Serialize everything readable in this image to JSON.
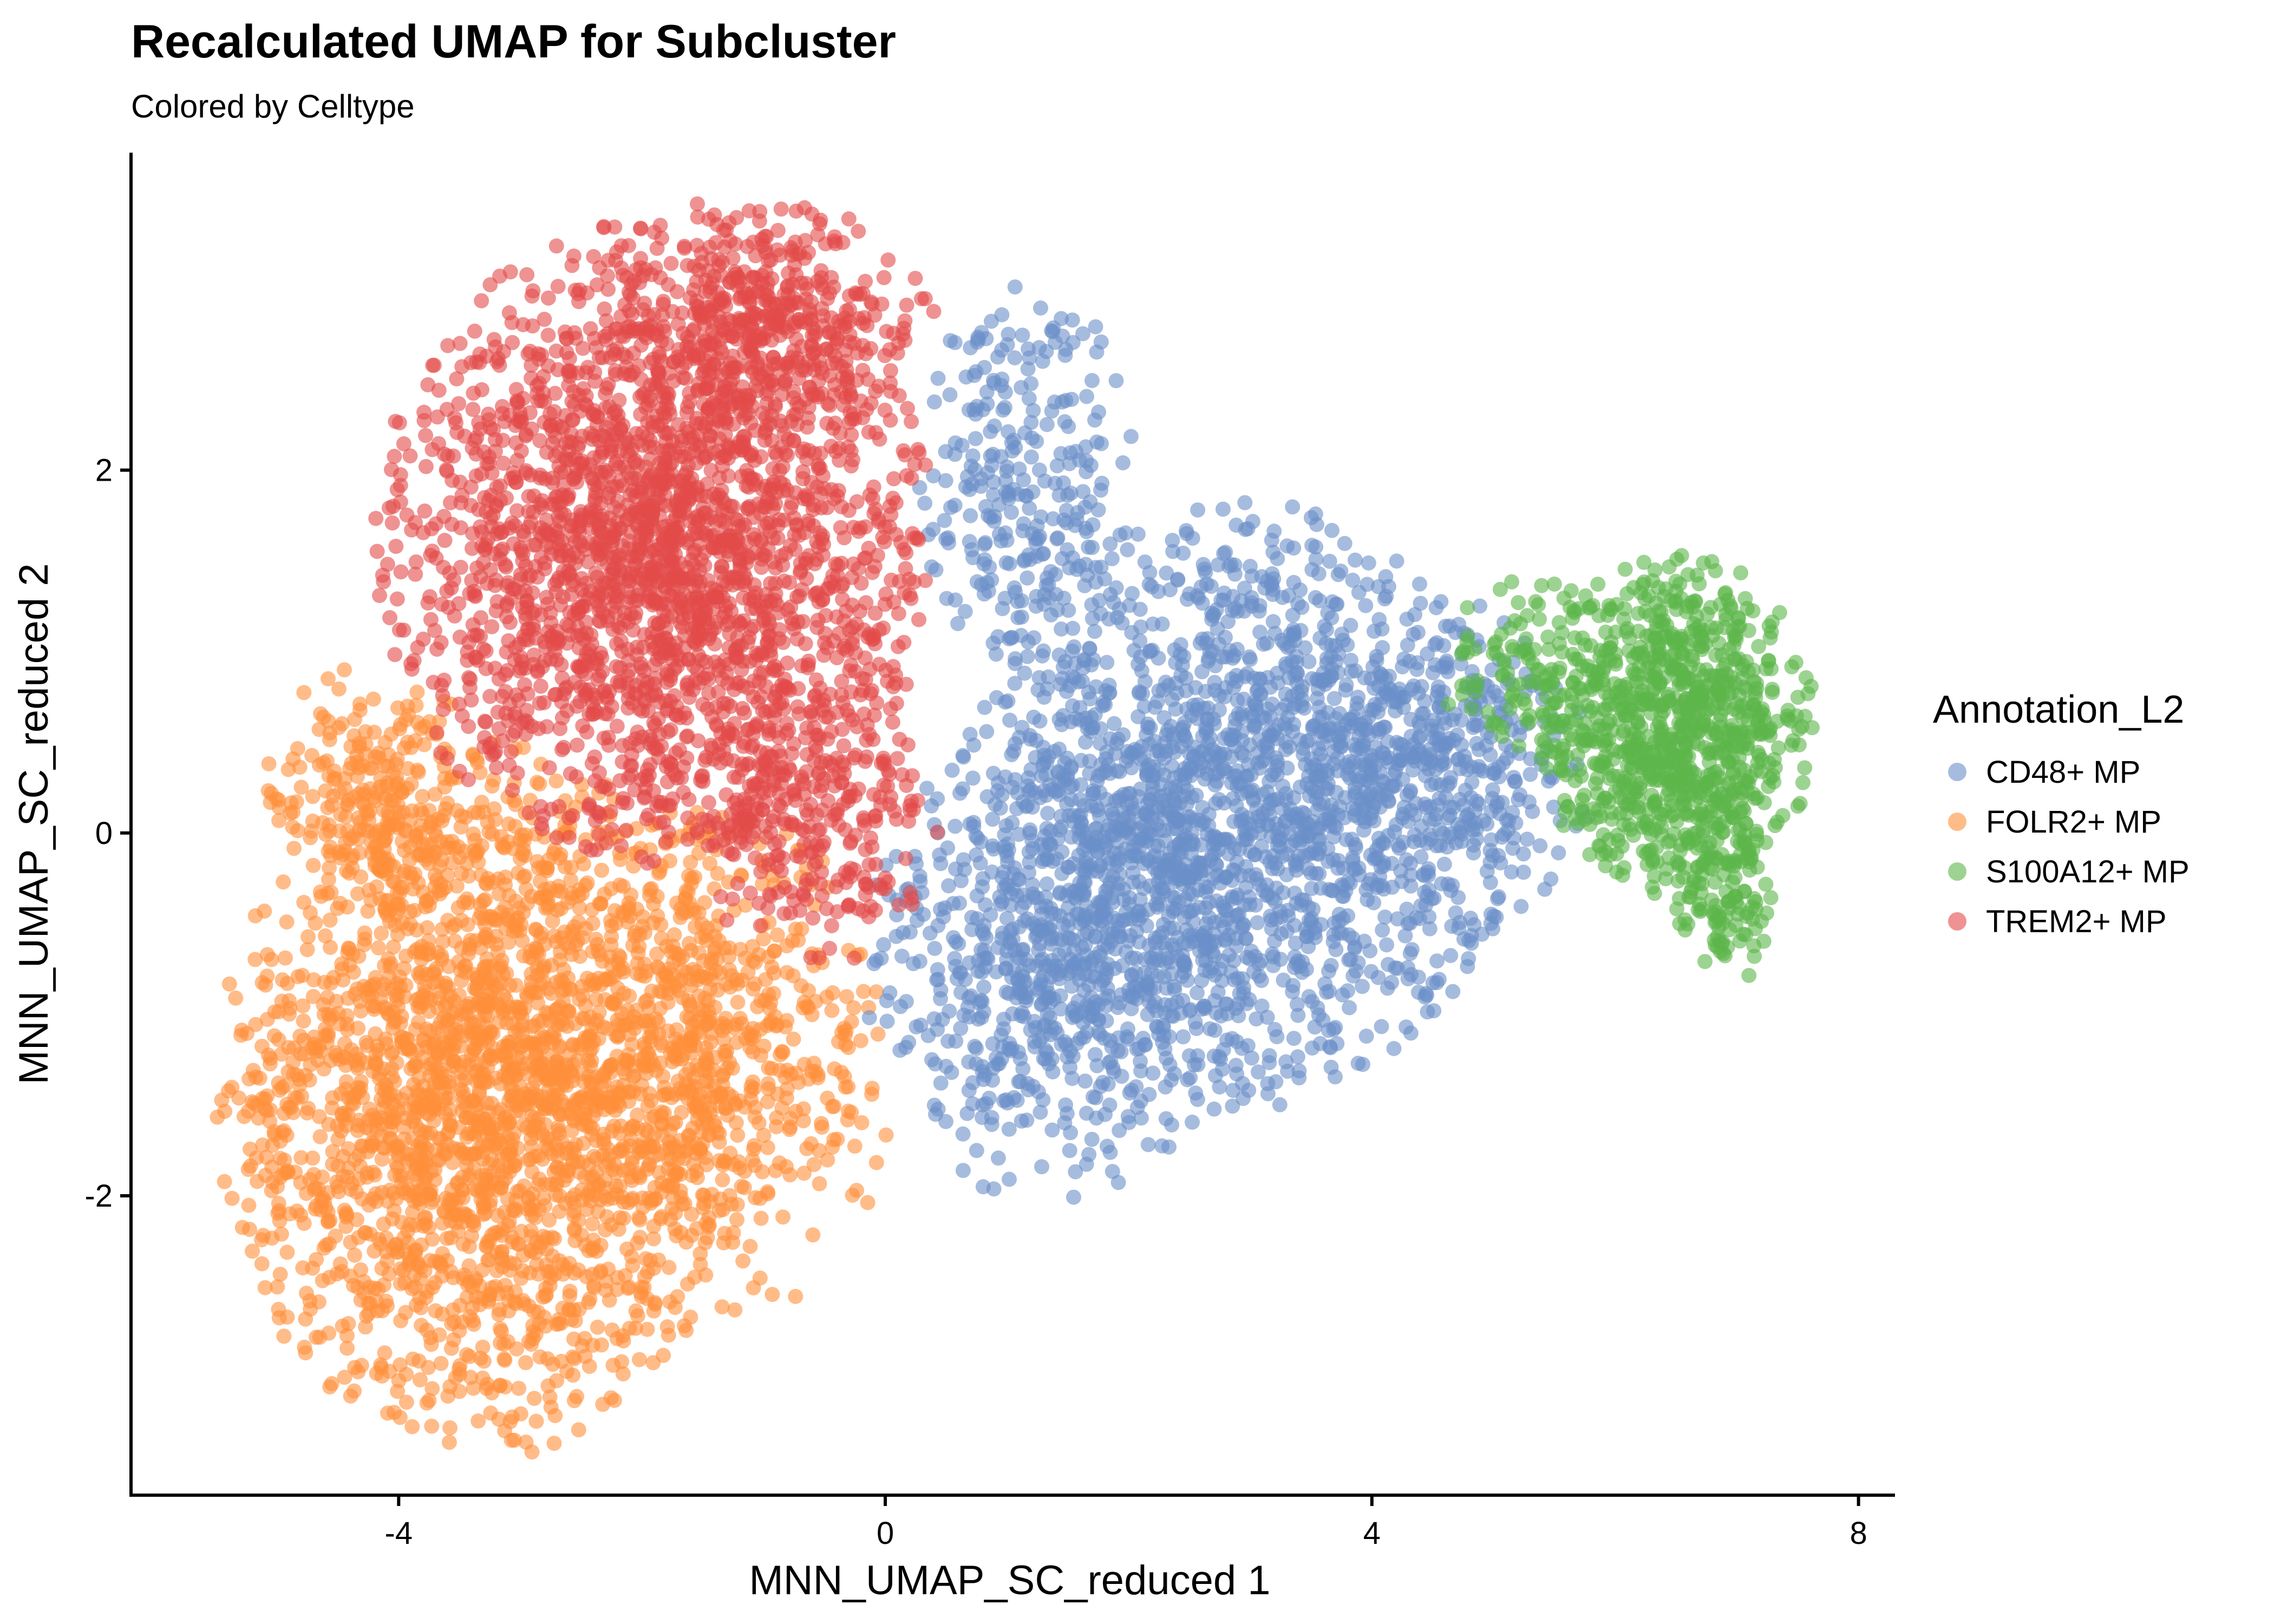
{
  "chart_data": {
    "type": "scatter",
    "title": "Recalculated UMAP for Subcluster",
    "subtitle": "Colored by Celltype",
    "xlabel": "MNN_UMAP_SC_reduced 1",
    "ylabel": "MNN_UMAP_SC_reduced 2",
    "xlim": [
      -6.2,
      8.3
    ],
    "ylim": [
      -3.65,
      3.75
    ],
    "xticks": [
      -4,
      0,
      4,
      8
    ],
    "yticks": [
      -2,
      0,
      2
    ],
    "grid": false,
    "legend_title": "Annotation_L2",
    "legend_placement": "right",
    "point_opacity": 0.6,
    "series": [
      {
        "name": "CD48+ MP",
        "color": "#6A8FC8",
        "clusters": [
          {
            "center": [
              2.9,
              0.15
            ],
            "spread": [
              1.1,
              0.8
            ],
            "n": 1700
          },
          {
            "center": [
              1.4,
              -0.7
            ],
            "spread": [
              0.75,
              0.65
            ],
            "n": 700
          },
          {
            "center": [
              1.2,
              1.9
            ],
            "spread": [
              0.45,
              0.6
            ],
            "n": 280
          },
          {
            "center": [
              4.6,
              0.4
            ],
            "spread": [
              0.6,
              0.45
            ],
            "n": 320
          }
        ]
      },
      {
        "name": "FOLR2+ MP",
        "color": "#FF8F3A",
        "clusters": [
          {
            "center": [
              -3.3,
              -1.45
            ],
            "spread": [
              1.05,
              0.95
            ],
            "n": 2300
          },
          {
            "center": [
              -1.5,
              -1.3
            ],
            "spread": [
              0.75,
              0.7
            ],
            "n": 650
          },
          {
            "center": [
              -4.2,
              0.2
            ],
            "spread": [
              0.45,
              0.35
            ],
            "n": 220
          }
        ]
      },
      {
        "name": "S100A12+ MP",
        "color": "#5BB64A",
        "clusters": [
          {
            "center": [
              6.5,
              0.6
            ],
            "spread": [
              0.55,
              0.45
            ],
            "n": 900
          },
          {
            "center": [
              6.9,
              -0.35
            ],
            "spread": [
              0.2,
              0.25
            ],
            "n": 120
          },
          {
            "center": [
              5.3,
              0.9
            ],
            "spread": [
              0.35,
              0.25
            ],
            "n": 120
          }
        ]
      },
      {
        "name": "TREM2+ MP",
        "color": "#E24B4A",
        "clusters": [
          {
            "center": [
              -1.9,
              1.6
            ],
            "spread": [
              1.1,
              0.85
            ],
            "n": 2300
          },
          {
            "center": [
              -1.0,
              2.8
            ],
            "spread": [
              0.7,
              0.35
            ],
            "n": 420
          },
          {
            "center": [
              -0.6,
              0.1
            ],
            "spread": [
              0.5,
              0.4
            ],
            "n": 300
          }
        ]
      }
    ]
  }
}
